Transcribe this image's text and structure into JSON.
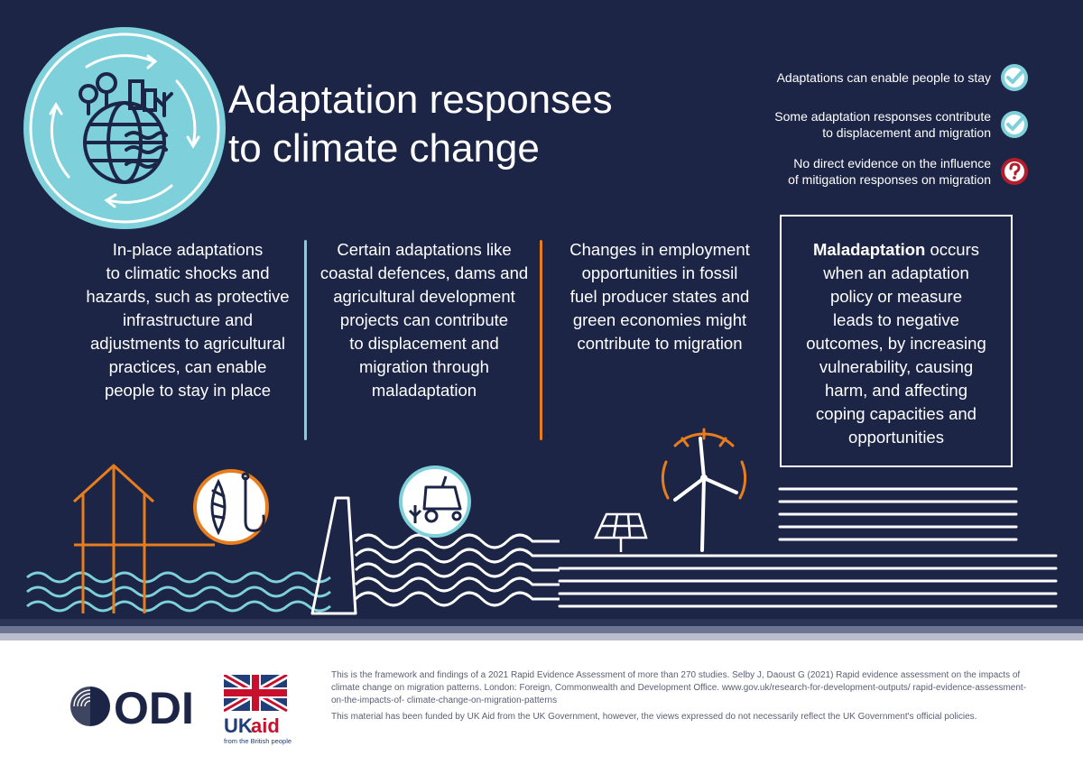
{
  "header": {
    "title_lines": [
      "Adaptation responses",
      "to climate change"
    ]
  },
  "legend": {
    "items": [
      {
        "lines": [
          "Adaptations can enable people to stay"
        ],
        "icon": "check-icon"
      },
      {
        "lines": [
          "Some adaptation responses contribute",
          "to displacement and migration"
        ],
        "icon": "check-icon"
      },
      {
        "lines": [
          "No direct evidence on the influence",
          "of mitigation responses on migration"
        ],
        "icon": "question-icon"
      }
    ]
  },
  "columns": {
    "col1": [
      "In-place adaptations",
      "to climatic shocks and",
      "hazards, such as protective",
      "infrastructure and",
      "adjustments to agricultural",
      "practices, can enable",
      "people to stay in place"
    ],
    "col2": [
      "Certain adaptations like",
      "coastal defences, dams and",
      "agricultural development",
      "projects can contribute",
      "to displacement and",
      "migration through",
      "maladaptation"
    ],
    "col3": [
      "Changes in employment",
      "opportunities in fossil",
      "fuel producer states and",
      "green economies might",
      "contribute to migration"
    ],
    "col4_bold": "Maladaptation",
    "col4_first": "occurs",
    "col4": [
      "when an adaptation",
      "policy or measure",
      "leads to negative",
      "outcomes, by increasing",
      "vulnerability, causing",
      "harm, and affecting",
      "coping capacities and",
      "opportunities"
    ]
  },
  "footer": {
    "paragraph1": "This is the framework and findings of a 2021 Rapid Evidence Assessment of more than 270 studies. Selby J, Daoust G (2021) Rapid evidence assessment on the impacts of climate change on migration patterns. London: Foreign, Commonwealth and Development Office. www.gov.uk/research-for-development-outputs/ rapid-evidence-assessment-on-the-impacts-of- climate-change-on-migration-patterns",
    "paragraph2": "This material has been funded by UK Aid from the UK Government, however, the views expressed do not necessarily reflect the UK Government's official policies.",
    "odi_logo_text": "ODI",
    "ukaid_uk": "UK",
    "ukaid_aid": "aid",
    "ukaid_tagline": "from the British people"
  },
  "colors": {
    "navy": "#1c2545",
    "teal": "#7ed0db",
    "orange": "#e87d1e",
    "red": "#b21e2c",
    "ukaid_blue": "#1f3e7a",
    "ukaid_red": "#c8102e"
  }
}
